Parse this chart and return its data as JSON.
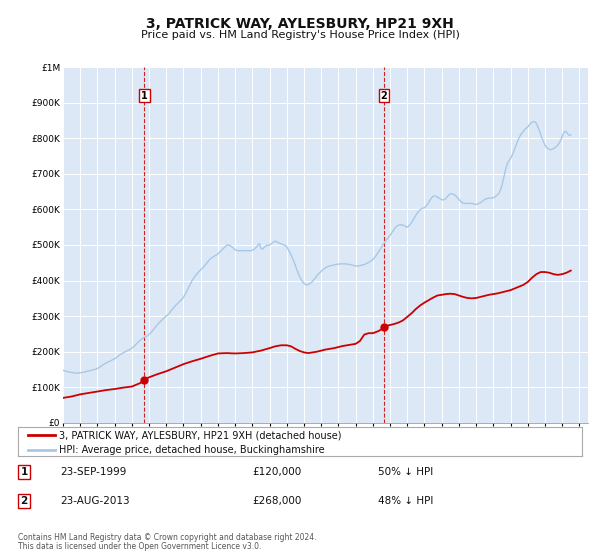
{
  "title": "3, PATRICK WAY, AYLESBURY, HP21 9XH",
  "subtitle": "Price paid vs. HM Land Registry's House Price Index (HPI)",
  "ylim": [
    0,
    1000000
  ],
  "xlim_start": 1995.0,
  "xlim_end": 2025.5,
  "yticks": [
    0,
    100000,
    200000,
    300000,
    400000,
    500000,
    600000,
    700000,
    800000,
    900000,
    1000000
  ],
  "ytick_labels": [
    "£0",
    "£100K",
    "£200K",
    "£300K",
    "£400K",
    "£500K",
    "£600K",
    "£700K",
    "£800K",
    "£900K",
    "£1M"
  ],
  "hpi_color": "#a8c8e8",
  "price_color": "#cc0000",
  "vline_color": "#cc0000",
  "marker_color": "#cc0000",
  "background_color": "#ffffff",
  "plot_bg_color": "#dce8f5",
  "grid_color": "#ffffff",
  "transaction1_date": "23-SEP-1999",
  "transaction1_price": 120000,
  "transaction1_pct": "50% ↓ HPI",
  "transaction1_year": 1999.73,
  "transaction2_date": "23-AUG-2013",
  "transaction2_price": 268000,
  "transaction2_pct": "48% ↓ HPI",
  "transaction2_year": 2013.64,
  "legend_label_price": "3, PATRICK WAY, AYLESBURY, HP21 9XH (detached house)",
  "legend_label_hpi": "HPI: Average price, detached house, Buckinghamshire",
  "footer1": "Contains HM Land Registry data © Crown copyright and database right 2024.",
  "footer2": "This data is licensed under the Open Government Licence v3.0.",
  "hpi_data": [
    [
      1995.0,
      148000
    ],
    [
      1995.08,
      146000
    ],
    [
      1995.17,
      145000
    ],
    [
      1995.25,
      144000
    ],
    [
      1995.33,
      143000
    ],
    [
      1995.42,
      142000
    ],
    [
      1995.5,
      142000
    ],
    [
      1995.58,
      141000
    ],
    [
      1995.67,
      140000
    ],
    [
      1995.75,
      140000
    ],
    [
      1995.83,
      140000
    ],
    [
      1995.92,
      140000
    ],
    [
      1996.0,
      141000
    ],
    [
      1996.08,
      141000
    ],
    [
      1996.17,
      142000
    ],
    [
      1996.25,
      143000
    ],
    [
      1996.33,
      144000
    ],
    [
      1996.42,
      145000
    ],
    [
      1996.5,
      146000
    ],
    [
      1996.58,
      147000
    ],
    [
      1996.67,
      148000
    ],
    [
      1996.75,
      149000
    ],
    [
      1996.83,
      150000
    ],
    [
      1996.92,
      151000
    ],
    [
      1997.0,
      153000
    ],
    [
      1997.08,
      155000
    ],
    [
      1997.17,
      158000
    ],
    [
      1997.25,
      161000
    ],
    [
      1997.33,
      163000
    ],
    [
      1997.42,
      166000
    ],
    [
      1997.5,
      168000
    ],
    [
      1997.58,
      170000
    ],
    [
      1997.67,
      172000
    ],
    [
      1997.75,
      174000
    ],
    [
      1997.83,
      176000
    ],
    [
      1997.92,
      178000
    ],
    [
      1998.0,
      180000
    ],
    [
      1998.08,
      183000
    ],
    [
      1998.17,
      186000
    ],
    [
      1998.25,
      189000
    ],
    [
      1998.33,
      192000
    ],
    [
      1998.42,
      194000
    ],
    [
      1998.5,
      197000
    ],
    [
      1998.58,
      199000
    ],
    [
      1998.67,
      201000
    ],
    [
      1998.75,
      203000
    ],
    [
      1998.83,
      205000
    ],
    [
      1998.92,
      207000
    ],
    [
      1999.0,
      210000
    ],
    [
      1999.08,
      213000
    ],
    [
      1999.17,
      217000
    ],
    [
      1999.25,
      221000
    ],
    [
      1999.33,
      225000
    ],
    [
      1999.42,
      229000
    ],
    [
      1999.5,
      233000
    ],
    [
      1999.58,
      236000
    ],
    [
      1999.67,
      239000
    ],
    [
      1999.75,
      241000
    ],
    [
      1999.83,
      243000
    ],
    [
      1999.92,
      245000
    ],
    [
      2000.0,
      248000
    ],
    [
      2000.08,
      252000
    ],
    [
      2000.17,
      257000
    ],
    [
      2000.25,
      262000
    ],
    [
      2000.33,
      267000
    ],
    [
      2000.42,
      272000
    ],
    [
      2000.5,
      277000
    ],
    [
      2000.58,
      281000
    ],
    [
      2000.67,
      285000
    ],
    [
      2000.75,
      289000
    ],
    [
      2000.83,
      293000
    ],
    [
      2000.92,
      297000
    ],
    [
      2001.0,
      300000
    ],
    [
      2001.08,
      304000
    ],
    [
      2001.17,
      308000
    ],
    [
      2001.25,
      313000
    ],
    [
      2001.33,
      318000
    ],
    [
      2001.42,
      323000
    ],
    [
      2001.5,
      328000
    ],
    [
      2001.58,
      332000
    ],
    [
      2001.67,
      336000
    ],
    [
      2001.75,
      340000
    ],
    [
      2001.83,
      344000
    ],
    [
      2001.92,
      348000
    ],
    [
      2002.0,
      353000
    ],
    [
      2002.08,
      360000
    ],
    [
      2002.17,
      368000
    ],
    [
      2002.25,
      376000
    ],
    [
      2002.33,
      384000
    ],
    [
      2002.42,
      392000
    ],
    [
      2002.5,
      400000
    ],
    [
      2002.58,
      406000
    ],
    [
      2002.67,
      412000
    ],
    [
      2002.75,
      417000
    ],
    [
      2002.83,
      422000
    ],
    [
      2002.92,
      426000
    ],
    [
      2003.0,
      430000
    ],
    [
      2003.08,
      434000
    ],
    [
      2003.17,
      438000
    ],
    [
      2003.25,
      443000
    ],
    [
      2003.33,
      448000
    ],
    [
      2003.42,
      453000
    ],
    [
      2003.5,
      458000
    ],
    [
      2003.58,
      462000
    ],
    [
      2003.67,
      465000
    ],
    [
      2003.75,
      468000
    ],
    [
      2003.83,
      470000
    ],
    [
      2003.92,
      472000
    ],
    [
      2004.0,
      475000
    ],
    [
      2004.08,
      479000
    ],
    [
      2004.17,
      483000
    ],
    [
      2004.25,
      487000
    ],
    [
      2004.33,
      491000
    ],
    [
      2004.42,
      495000
    ],
    [
      2004.5,
      499000
    ],
    [
      2004.58,
      500000
    ],
    [
      2004.67,
      499000
    ],
    [
      2004.75,
      497000
    ],
    [
      2004.83,
      494000
    ],
    [
      2004.92,
      490000
    ],
    [
      2005.0,
      487000
    ],
    [
      2005.08,
      485000
    ],
    [
      2005.17,
      484000
    ],
    [
      2005.25,
      484000
    ],
    [
      2005.33,
      484000
    ],
    [
      2005.42,
      484000
    ],
    [
      2005.5,
      484000
    ],
    [
      2005.58,
      484000
    ],
    [
      2005.67,
      484000
    ],
    [
      2005.75,
      484000
    ],
    [
      2005.83,
      484000
    ],
    [
      2005.92,
      484000
    ],
    [
      2006.0,
      485000
    ],
    [
      2006.08,
      488000
    ],
    [
      2006.17,
      491000
    ],
    [
      2006.25,
      495000
    ],
    [
      2006.33,
      500000
    ],
    [
      2006.42,
      504000
    ],
    [
      2006.5,
      490000
    ],
    [
      2006.58,
      488000
    ],
    [
      2006.67,
      492000
    ],
    [
      2006.75,
      496000
    ],
    [
      2006.83,
      499000
    ],
    [
      2006.92,
      499000
    ],
    [
      2007.0,
      500000
    ],
    [
      2007.08,
      503000
    ],
    [
      2007.17,
      506000
    ],
    [
      2007.25,
      509000
    ],
    [
      2007.33,
      511000
    ],
    [
      2007.42,
      509000
    ],
    [
      2007.5,
      507000
    ],
    [
      2007.58,
      505000
    ],
    [
      2007.67,
      503000
    ],
    [
      2007.75,
      502000
    ],
    [
      2007.83,
      500000
    ],
    [
      2007.92,
      498000
    ],
    [
      2008.0,
      495000
    ],
    [
      2008.08,
      488000
    ],
    [
      2008.17,
      480000
    ],
    [
      2008.25,
      472000
    ],
    [
      2008.33,
      463000
    ],
    [
      2008.42,
      453000
    ],
    [
      2008.5,
      442000
    ],
    [
      2008.58,
      431000
    ],
    [
      2008.67,
      420000
    ],
    [
      2008.75,
      411000
    ],
    [
      2008.83,
      403000
    ],
    [
      2008.92,
      397000
    ],
    [
      2009.0,
      392000
    ],
    [
      2009.08,
      389000
    ],
    [
      2009.17,
      388000
    ],
    [
      2009.25,
      389000
    ],
    [
      2009.33,
      391000
    ],
    [
      2009.42,
      394000
    ],
    [
      2009.5,
      398000
    ],
    [
      2009.58,
      403000
    ],
    [
      2009.67,
      408000
    ],
    [
      2009.75,
      413000
    ],
    [
      2009.83,
      418000
    ],
    [
      2009.92,
      422000
    ],
    [
      2010.0,
      426000
    ],
    [
      2010.08,
      430000
    ],
    [
      2010.17,
      433000
    ],
    [
      2010.25,
      436000
    ],
    [
      2010.33,
      438000
    ],
    [
      2010.42,
      440000
    ],
    [
      2010.5,
      441000
    ],
    [
      2010.58,
      442000
    ],
    [
      2010.67,
      443000
    ],
    [
      2010.75,
      444000
    ],
    [
      2010.83,
      445000
    ],
    [
      2010.92,
      446000
    ],
    [
      2011.0,
      446000
    ],
    [
      2011.08,
      447000
    ],
    [
      2011.17,
      447000
    ],
    [
      2011.25,
      447000
    ],
    [
      2011.33,
      447000
    ],
    [
      2011.42,
      447000
    ],
    [
      2011.5,
      446000
    ],
    [
      2011.58,
      446000
    ],
    [
      2011.67,
      445000
    ],
    [
      2011.75,
      444000
    ],
    [
      2011.83,
      443000
    ],
    [
      2011.92,
      442000
    ],
    [
      2012.0,
      441000
    ],
    [
      2012.08,
      441000
    ],
    [
      2012.17,
      441000
    ],
    [
      2012.25,
      442000
    ],
    [
      2012.33,
      443000
    ],
    [
      2012.42,
      444000
    ],
    [
      2012.5,
      445000
    ],
    [
      2012.58,
      447000
    ],
    [
      2012.67,
      449000
    ],
    [
      2012.75,
      451000
    ],
    [
      2012.83,
      453000
    ],
    [
      2012.92,
      456000
    ],
    [
      2013.0,
      459000
    ],
    [
      2013.08,
      464000
    ],
    [
      2013.17,
      469000
    ],
    [
      2013.25,
      475000
    ],
    [
      2013.33,
      481000
    ],
    [
      2013.42,
      487000
    ],
    [
      2013.5,
      494000
    ],
    [
      2013.58,
      500000
    ],
    [
      2013.67,
      506000
    ],
    [
      2013.75,
      512000
    ],
    [
      2013.83,
      517000
    ],
    [
      2013.92,
      522000
    ],
    [
      2014.0,
      527000
    ],
    [
      2014.08,
      533000
    ],
    [
      2014.17,
      539000
    ],
    [
      2014.25,
      545000
    ],
    [
      2014.33,
      550000
    ],
    [
      2014.42,
      554000
    ],
    [
      2014.5,
      556000
    ],
    [
      2014.58,
      557000
    ],
    [
      2014.67,
      557000
    ],
    [
      2014.75,
      556000
    ],
    [
      2014.83,
      554000
    ],
    [
      2014.92,
      552000
    ],
    [
      2015.0,
      550000
    ],
    [
      2015.08,
      553000
    ],
    [
      2015.17,
      558000
    ],
    [
      2015.25,
      563000
    ],
    [
      2015.33,
      570000
    ],
    [
      2015.42,
      577000
    ],
    [
      2015.5,
      584000
    ],
    [
      2015.58,
      590000
    ],
    [
      2015.67,
      595000
    ],
    [
      2015.75,
      599000
    ],
    [
      2015.83,
      602000
    ],
    [
      2015.92,
      604000
    ],
    [
      2016.0,
      605000
    ],
    [
      2016.08,
      609000
    ],
    [
      2016.17,
      614000
    ],
    [
      2016.25,
      620000
    ],
    [
      2016.33,
      627000
    ],
    [
      2016.42,
      633000
    ],
    [
      2016.5,
      637000
    ],
    [
      2016.58,
      638000
    ],
    [
      2016.67,
      637000
    ],
    [
      2016.75,
      635000
    ],
    [
      2016.83,
      632000
    ],
    [
      2016.92,
      630000
    ],
    [
      2017.0,
      627000
    ],
    [
      2017.08,
      627000
    ],
    [
      2017.17,
      628000
    ],
    [
      2017.25,
      631000
    ],
    [
      2017.33,
      636000
    ],
    [
      2017.42,
      641000
    ],
    [
      2017.5,
      644000
    ],
    [
      2017.58,
      644000
    ],
    [
      2017.67,
      643000
    ],
    [
      2017.75,
      641000
    ],
    [
      2017.83,
      638000
    ],
    [
      2017.92,
      633000
    ],
    [
      2018.0,
      628000
    ],
    [
      2018.08,
      624000
    ],
    [
      2018.17,
      620000
    ],
    [
      2018.25,
      618000
    ],
    [
      2018.33,
      617000
    ],
    [
      2018.42,
      617000
    ],
    [
      2018.5,
      617000
    ],
    [
      2018.58,
      617000
    ],
    [
      2018.67,
      617000
    ],
    [
      2018.75,
      617000
    ],
    [
      2018.83,
      616000
    ],
    [
      2018.92,
      615000
    ],
    [
      2019.0,
      614000
    ],
    [
      2019.08,
      615000
    ],
    [
      2019.17,
      617000
    ],
    [
      2019.25,
      619000
    ],
    [
      2019.33,
      622000
    ],
    [
      2019.42,
      625000
    ],
    [
      2019.5,
      628000
    ],
    [
      2019.58,
      630000
    ],
    [
      2019.67,
      631000
    ],
    [
      2019.75,
      632000
    ],
    [
      2019.83,
      632000
    ],
    [
      2019.92,
      632000
    ],
    [
      2020.0,
      633000
    ],
    [
      2020.08,
      635000
    ],
    [
      2020.17,
      638000
    ],
    [
      2020.25,
      641000
    ],
    [
      2020.33,
      646000
    ],
    [
      2020.42,
      655000
    ],
    [
      2020.5,
      668000
    ],
    [
      2020.58,
      685000
    ],
    [
      2020.67,
      703000
    ],
    [
      2020.75,
      719000
    ],
    [
      2020.83,
      731000
    ],
    [
      2020.92,
      738000
    ],
    [
      2021.0,
      743000
    ],
    [
      2021.08,
      751000
    ],
    [
      2021.17,
      761000
    ],
    [
      2021.25,
      771000
    ],
    [
      2021.33,
      782000
    ],
    [
      2021.42,
      793000
    ],
    [
      2021.5,
      802000
    ],
    [
      2021.58,
      809000
    ],
    [
      2021.67,
      815000
    ],
    [
      2021.75,
      820000
    ],
    [
      2021.83,
      825000
    ],
    [
      2021.92,
      829000
    ],
    [
      2022.0,
      832000
    ],
    [
      2022.08,
      837000
    ],
    [
      2022.17,
      842000
    ],
    [
      2022.25,
      845000
    ],
    [
      2022.33,
      847000
    ],
    [
      2022.42,
      846000
    ],
    [
      2022.5,
      842000
    ],
    [
      2022.58,
      833000
    ],
    [
      2022.67,
      822000
    ],
    [
      2022.75,
      811000
    ],
    [
      2022.83,
      800000
    ],
    [
      2022.92,
      790000
    ],
    [
      2023.0,
      781000
    ],
    [
      2023.08,
      775000
    ],
    [
      2023.17,
      771000
    ],
    [
      2023.25,
      769000
    ],
    [
      2023.33,
      768000
    ],
    [
      2023.42,
      769000
    ],
    [
      2023.5,
      771000
    ],
    [
      2023.58,
      774000
    ],
    [
      2023.67,
      777000
    ],
    [
      2023.75,
      781000
    ],
    [
      2023.83,
      787000
    ],
    [
      2023.92,
      795000
    ],
    [
      2024.0,
      805000
    ],
    [
      2024.08,
      815000
    ],
    [
      2024.17,
      820000
    ],
    [
      2024.25,
      818000
    ],
    [
      2024.33,
      812000
    ],
    [
      2024.42,
      808000
    ],
    [
      2024.5,
      810000
    ]
  ],
  "price_data": [
    [
      1995.0,
      70000
    ],
    [
      1995.5,
      74000
    ],
    [
      1996.0,
      80000
    ],
    [
      1996.5,
      84000
    ],
    [
      1997.0,
      88000
    ],
    [
      1997.5,
      92000
    ],
    [
      1998.0,
      95000
    ],
    [
      1998.5,
      99000
    ],
    [
      1999.0,
      102000
    ],
    [
      1999.5,
      112000
    ],
    [
      1999.73,
      120000
    ],
    [
      2000.0,
      128000
    ],
    [
      2000.5,
      137000
    ],
    [
      2001.0,
      145000
    ],
    [
      2001.5,
      155000
    ],
    [
      2002.0,
      165000
    ],
    [
      2002.5,
      173000
    ],
    [
      2003.0,
      180000
    ],
    [
      2003.5,
      188000
    ],
    [
      2004.0,
      195000
    ],
    [
      2004.5,
      196000
    ],
    [
      2005.0,
      195000
    ],
    [
      2005.5,
      196000
    ],
    [
      2006.0,
      198000
    ],
    [
      2006.5,
      203000
    ],
    [
      2007.0,
      210000
    ],
    [
      2007.33,
      215000
    ],
    [
      2007.67,
      218000
    ],
    [
      2008.0,
      218000
    ],
    [
      2008.25,
      215000
    ],
    [
      2008.5,
      208000
    ],
    [
      2008.75,
      202000
    ],
    [
      2009.0,
      198000
    ],
    [
      2009.25,
      196000
    ],
    [
      2009.5,
      198000
    ],
    [
      2009.75,
      200000
    ],
    [
      2010.0,
      203000
    ],
    [
      2010.25,
      206000
    ],
    [
      2010.5,
      208000
    ],
    [
      2010.75,
      210000
    ],
    [
      2011.0,
      213000
    ],
    [
      2011.25,
      216000
    ],
    [
      2011.5,
      218000
    ],
    [
      2011.75,
      220000
    ],
    [
      2012.0,
      222000
    ],
    [
      2012.25,
      230000
    ],
    [
      2012.5,
      248000
    ],
    [
      2012.75,
      252000
    ],
    [
      2013.0,
      252000
    ],
    [
      2013.17,
      255000
    ],
    [
      2013.33,
      258000
    ],
    [
      2013.5,
      263000
    ],
    [
      2013.64,
      268000
    ],
    [
      2013.75,
      272000
    ],
    [
      2014.0,
      275000
    ],
    [
      2014.25,
      278000
    ],
    [
      2014.5,
      282000
    ],
    [
      2014.75,
      288000
    ],
    [
      2015.0,
      298000
    ],
    [
      2015.25,
      308000
    ],
    [
      2015.5,
      320000
    ],
    [
      2015.75,
      330000
    ],
    [
      2016.0,
      338000
    ],
    [
      2016.25,
      345000
    ],
    [
      2016.5,
      352000
    ],
    [
      2016.75,
      358000
    ],
    [
      2017.0,
      360000
    ],
    [
      2017.25,
      362000
    ],
    [
      2017.5,
      363000
    ],
    [
      2017.75,
      362000
    ],
    [
      2018.0,
      358000
    ],
    [
      2018.25,
      354000
    ],
    [
      2018.5,
      351000
    ],
    [
      2018.75,
      350000
    ],
    [
      2019.0,
      351000
    ],
    [
      2019.25,
      354000
    ],
    [
      2019.5,
      357000
    ],
    [
      2019.75,
      360000
    ],
    [
      2020.0,
      362000
    ],
    [
      2020.25,
      364000
    ],
    [
      2020.5,
      367000
    ],
    [
      2020.75,
      370000
    ],
    [
      2021.0,
      373000
    ],
    [
      2021.25,
      378000
    ],
    [
      2021.5,
      383000
    ],
    [
      2021.75,
      388000
    ],
    [
      2022.0,
      396000
    ],
    [
      2022.25,
      408000
    ],
    [
      2022.5,
      418000
    ],
    [
      2022.75,
      424000
    ],
    [
      2023.0,
      424000
    ],
    [
      2023.25,
      422000
    ],
    [
      2023.5,
      418000
    ],
    [
      2023.75,
      416000
    ],
    [
      2024.0,
      418000
    ],
    [
      2024.25,
      422000
    ],
    [
      2024.5,
      428000
    ]
  ]
}
